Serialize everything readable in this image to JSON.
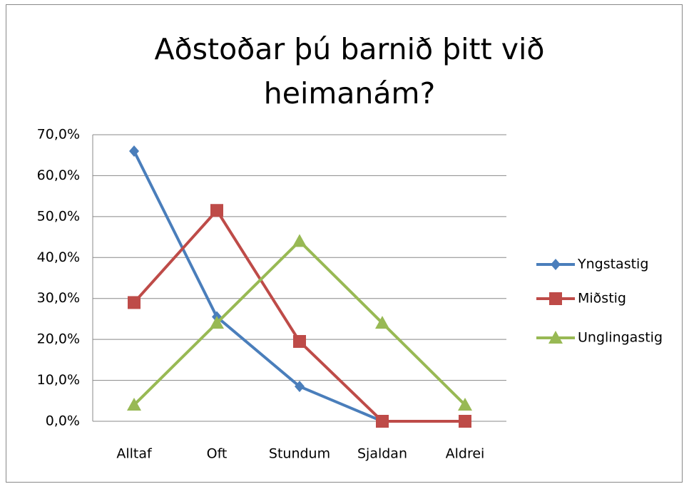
{
  "chart_data": {
    "type": "line",
    "title": "Aðstoðar þú barnið þitt við heimanám?",
    "categories": [
      "Alltaf",
      "Oft",
      "Stundum",
      "Sjaldan",
      "Aldrei"
    ],
    "series": [
      {
        "name": "Yngstastig",
        "color": "#4a7ebb",
        "marker": "diamond",
        "values": [
          66,
          25.5,
          8.5,
          0,
          0
        ]
      },
      {
        "name": "Miðstig",
        "color": "#be4b48",
        "marker": "square",
        "values": [
          29,
          51.5,
          19.5,
          0,
          0
        ]
      },
      {
        "name": "Unglingastig",
        "color": "#98b954",
        "marker": "triangle",
        "values": [
          4,
          24,
          44,
          24,
          4
        ]
      }
    ],
    "ylim": [
      0,
      70
    ],
    "yticks": [
      {
        "value": 0,
        "label": "0,0%"
      },
      {
        "value": 10,
        "label": "10,0%"
      },
      {
        "value": 20,
        "label": "20,0%"
      },
      {
        "value": 30,
        "label": "30,0%"
      },
      {
        "value": 40,
        "label": "40,0%"
      },
      {
        "value": 50,
        "label": "50,0%"
      },
      {
        "value": 60,
        "label": "60,0%"
      },
      {
        "value": 70,
        "label": "70,0%"
      }
    ],
    "grid": true,
    "legend": "right"
  }
}
